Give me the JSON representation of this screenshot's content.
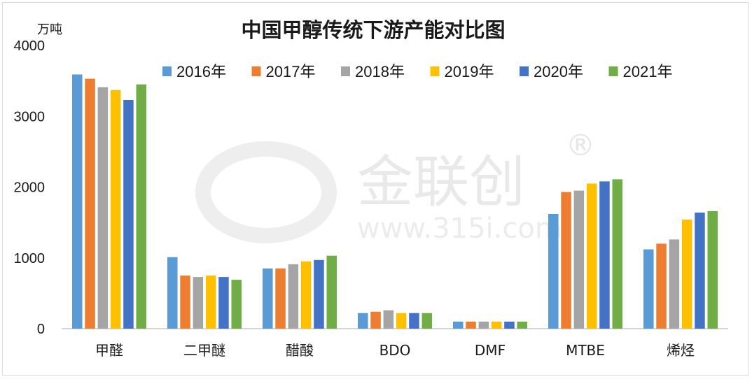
{
  "chart_data": {
    "type": "bar",
    "title": "中国甲醇传统下游产能对比图",
    "ylabel": "万吨",
    "ylim": [
      0,
      4000
    ],
    "yticks": [
      0,
      1000,
      2000,
      3000,
      4000
    ],
    "grid": false,
    "legend_position": "top",
    "categories": [
      "甲醛",
      "二甲醚",
      "醋酸",
      "BDO",
      "DMF",
      "MTBE",
      "烯烃"
    ],
    "series": [
      {
        "name": "2016年",
        "color": "#5b9bd5",
        "values": [
          3590,
          1010,
          850,
          220,
          100,
          1620,
          1120
        ]
      },
      {
        "name": "2017年",
        "color": "#ed7d31",
        "values": [
          3530,
          750,
          850,
          240,
          100,
          1930,
          1200
        ]
      },
      {
        "name": "2018年",
        "color": "#a5a5a5",
        "values": [
          3410,
          730,
          910,
          260,
          100,
          1950,
          1260
        ]
      },
      {
        "name": "2019年",
        "color": "#ffc000",
        "values": [
          3370,
          750,
          950,
          220,
          100,
          2050,
          1540
        ]
      },
      {
        "name": "2020年",
        "color": "#4472c4",
        "values": [
          3230,
          730,
          970,
          220,
          100,
          2080,
          1640
        ]
      },
      {
        "name": "2021年",
        "color": "#70ad47",
        "values": [
          3450,
          690,
          1030,
          220,
          100,
          2110,
          1660
        ]
      }
    ]
  },
  "watermark": {
    "brand": "金联创",
    "url": "www.315i.com",
    "mark": "®",
    "color": "#e9e9e9"
  }
}
